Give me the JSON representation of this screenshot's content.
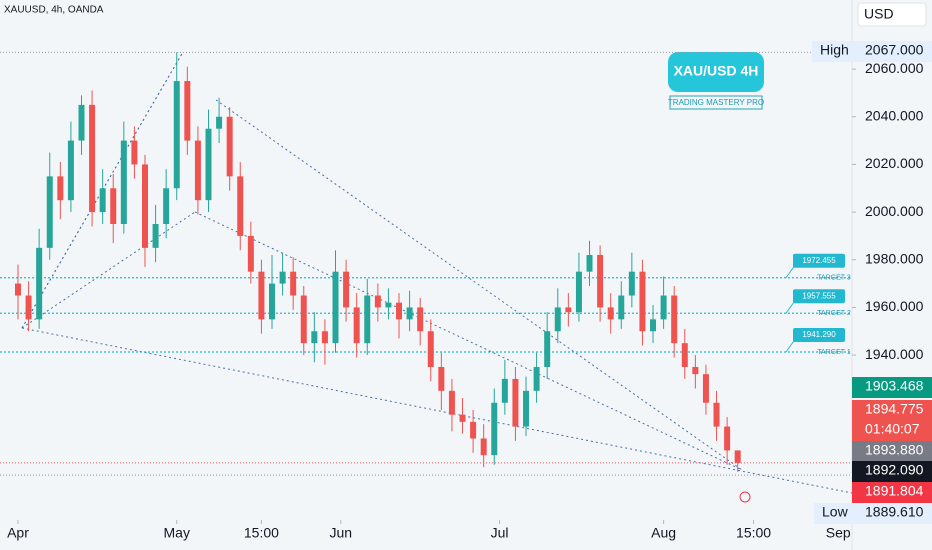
{
  "header": {
    "symbol": "XAUUSD, 4h, OANDA",
    "currency": "USD"
  },
  "badge": {
    "title": "XAU/USD 4H",
    "subtitle": "TRADING MASTERY PRO"
  },
  "chart_data": {
    "type": "candlestick",
    "up_color": "#26a69a",
    "down_color": "#ef5350",
    "open": [
      1970,
      1965,
      1955,
      1985,
      2015,
      2005,
      2030,
      2045,
      2000,
      2010,
      1995,
      2030,
      2020,
      1985,
      1995,
      2010,
      2055,
      2030,
      2005,
      2035,
      2040,
      2015,
      1990,
      1975,
      1955,
      1970,
      1975,
      1965,
      1945,
      1950,
      1945,
      1975,
      1960,
      1945,
      1965,
      1960,
      1962,
      1955,
      1960,
      1950,
      1935,
      1925,
      1915,
      1912,
      1905,
      1898,
      1920,
      1930,
      1910,
      1925,
      1935,
      1950,
      1960,
      1958,
      1975,
      1982,
      1960,
      1955,
      1965,
      1975,
      1950,
      1955,
      1965,
      1945,
      1935,
      1932,
      1920,
      1910,
      1900
    ],
    "high": [
      1978,
      1971,
      1993,
      2025,
      2021,
      2038,
      2049,
      2051,
      2018,
      2016,
      2038,
      2036,
      2024,
      2003,
      2018,
      2067,
      2061,
      2036,
      2043,
      2048,
      2044,
      2021,
      1996,
      1980,
      1982,
      1983,
      1981,
      1969,
      1958,
      1955,
      1984,
      1980,
      1966,
      1972,
      1970,
      1968,
      1966,
      1967,
      1964,
      1955,
      1941,
      1930,
      1922,
      1917,
      1911,
      1926,
      1938,
      1935,
      1931,
      1941,
      1958,
      1968,
      1966,
      1983,
      1988,
      1986,
      1966,
      1971,
      1983,
      1980,
      1961,
      1973,
      1969,
      1951,
      1940,
      1936,
      1925,
      1914,
      1900
    ],
    "low": [
      1955,
      1950,
      1951,
      1980,
      1997,
      2000,
      2024,
      1994,
      1995,
      1987,
      1991,
      2014,
      1977,
      1979,
      1989,
      2005,
      2024,
      1999,
      2000,
      2029,
      2009,
      1984,
      1970,
      1949,
      1951,
      1965,
      1959,
      1940,
      1937,
      1936,
      1941,
      1954,
      1939,
      1940,
      1954,
      1955,
      1947,
      1950,
      1944,
      1929,
      1917,
      1908,
      1907,
      1899,
      1893,
      1894,
      1915,
      1904,
      1906,
      1920,
      1930,
      1945,
      1952,
      1954,
      1969,
      1954,
      1949,
      1951,
      1960,
      1944,
      1945,
      1951,
      1939,
      1930,
      1926,
      1915,
      1904,
      1894,
      1891
    ],
    "close": [
      1965,
      1955,
      1985,
      2015,
      2005,
      2030,
      2045,
      2000,
      2010,
      1995,
      2030,
      2020,
      1985,
      1995,
      2010,
      2055,
      2030,
      2005,
      2035,
      2040,
      2015,
      1990,
      1975,
      1955,
      1970,
      1975,
      1965,
      1945,
      1950,
      1945,
      1975,
      1960,
      1945,
      1965,
      1960,
      1962,
      1955,
      1960,
      1950,
      1935,
      1925,
      1915,
      1912,
      1905,
      1898,
      1920,
      1930,
      1910,
      1925,
      1935,
      1950,
      1960,
      1958,
      1975,
      1982,
      1960,
      1955,
      1965,
      1975,
      1950,
      1955,
      1965,
      1945,
      1935,
      1932,
      1920,
      1910,
      1900,
      1894.775
    ],
    "xlim": [
      -1.7,
      78.8
    ],
    "xticks": [
      {
        "value": 0,
        "label": "Apr"
      },
      {
        "value": 15,
        "label": "May"
      },
      {
        "value": 23,
        "label": "15:00"
      },
      {
        "value": 30.5,
        "label": "Jun"
      },
      {
        "value": 45.5,
        "label": "Jul"
      },
      {
        "value": 61,
        "label": "Aug"
      },
      {
        "value": 69.5,
        "label": "15:00"
      },
      {
        "value": 77.5,
        "label": "Sep"
      }
    ],
    "ylim": [
      1870.8,
      2089
    ],
    "yticks": [
      {
        "value": 1940,
        "label": "1940.000"
      },
      {
        "value": 1960,
        "label": "1960.000"
      },
      {
        "value": 1980,
        "label": "1980.000"
      },
      {
        "value": 2000,
        "label": "2000.000"
      },
      {
        "value": 2020,
        "label": "2020.000"
      },
      {
        "value": 2040,
        "label": "2040.000"
      },
      {
        "value": 2060,
        "label": "2060.000"
      }
    ],
    "levels": [
      {
        "value": 1972.455,
        "label": "1972.455",
        "name": "TARGET 3"
      },
      {
        "value": 1957.555,
        "label": "1957.555",
        "name": "TARGET 2"
      },
      {
        "value": 1941.29,
        "label": "1941.290",
        "name": "TARGET 1"
      }
    ],
    "level_color": "#22b8cf",
    "high_mark": {
      "name": "High",
      "value": 2067,
      "label": "2067.000"
    },
    "low_mark": {
      "name": "Low",
      "value": 1889.61,
      "label": "1889.610"
    },
    "last_price": {
      "value": 1894.775,
      "countdown": "01:40:07"
    },
    "price_tags": [
      {
        "label": "1903.468",
        "color": "#089981"
      },
      {
        "label": "1893.880",
        "color": "#787b86"
      },
      {
        "label": "1892.090",
        "color": "#131722"
      },
      {
        "label": "1891.804",
        "color": "#f23645"
      }
    ]
  }
}
